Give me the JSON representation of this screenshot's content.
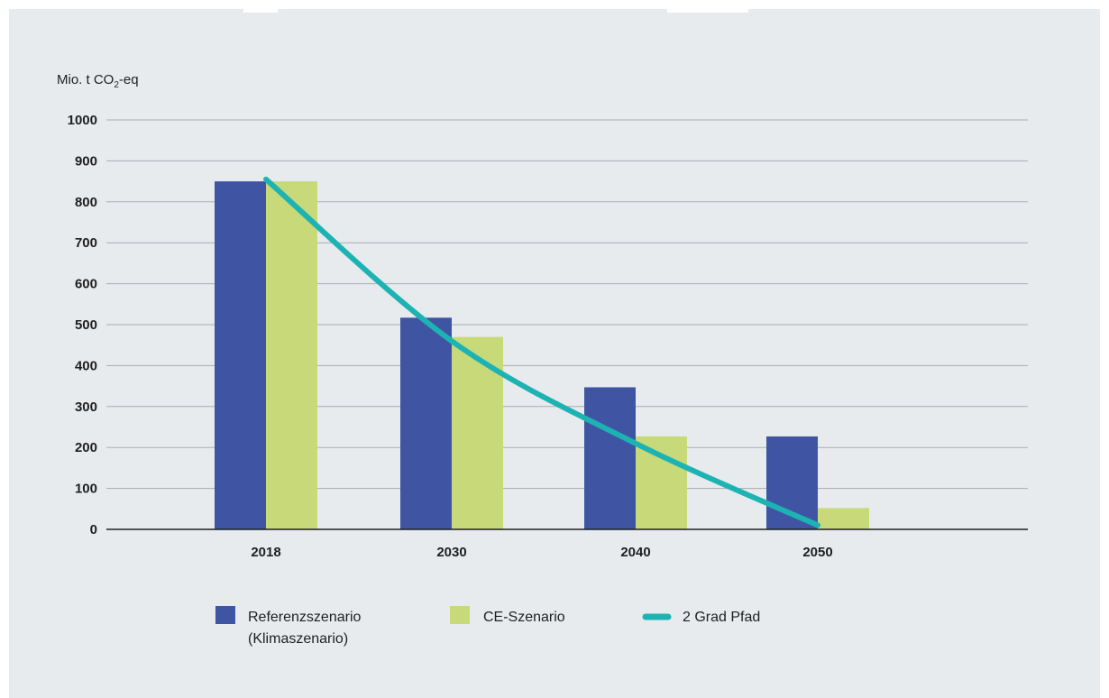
{
  "chart_data": {
    "type": "bar",
    "title": "",
    "ylabel_main": "Mio. t CO",
    "ylabel_sub": "2",
    "ylabel_rest": "-eq",
    "xlabel": "",
    "ylim": [
      0,
      1000
    ],
    "yticks": [
      0,
      100,
      200,
      300,
      400,
      500,
      600,
      700,
      800,
      900,
      1000
    ],
    "categories": [
      "2018",
      "2030",
      "2040",
      "2050"
    ],
    "series": [
      {
        "name": "Referenzszenario (Klimaszenario)",
        "name_lines": [
          "Referenzszenario",
          "(Klimaszenario)"
        ],
        "values": [
          850,
          517,
          347,
          227
        ],
        "color": "#3f55a3"
      },
      {
        "name": "CE-Szenario",
        "name_lines": [
          "CE-Szenario"
        ],
        "values": [
          850,
          470,
          227,
          52
        ],
        "color": "#c8d97a"
      }
    ],
    "line": {
      "name": "2 Grad Pfad",
      "color": "#1db3b3",
      "points": [
        [
          2018,
          855
        ],
        [
          2030,
          460
        ],
        [
          2040,
          210
        ],
        [
          2050,
          10
        ]
      ]
    },
    "grid": true,
    "legend_position": "bottom"
  }
}
